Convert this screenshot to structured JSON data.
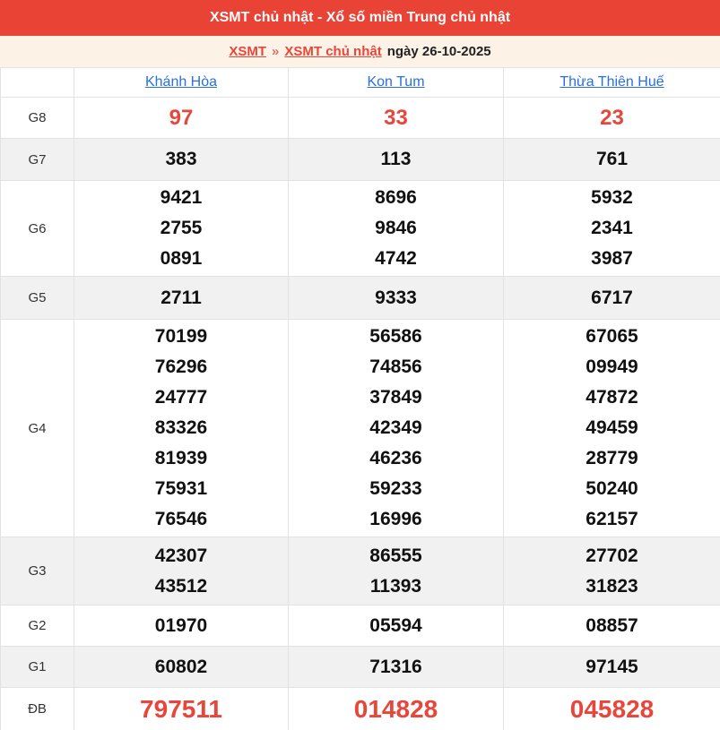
{
  "header": {
    "title": "XSMT chủ nhật - Xổ số miền Trung chủ nhật"
  },
  "breadcrumb": {
    "link1": "XSMT",
    "separator": "»",
    "link2": "XSMT chủ nhật",
    "suffix": "ngày 26-10-2025"
  },
  "table": {
    "columns": [
      "Khánh Hòa",
      "Kon Tum",
      "Thừa Thiên Huế"
    ],
    "rows": [
      {
        "key": "g8",
        "label": "G8",
        "cells": [
          [
            "97"
          ],
          [
            "33"
          ],
          [
            "23"
          ]
        ]
      },
      {
        "key": "g7",
        "label": "G7",
        "cells": [
          [
            "383"
          ],
          [
            "113"
          ],
          [
            "761"
          ]
        ]
      },
      {
        "key": "g6",
        "label": "G6",
        "cells": [
          [
            "9421",
            "2755",
            "0891"
          ],
          [
            "8696",
            "9846",
            "4742"
          ],
          [
            "5932",
            "2341",
            "3987"
          ]
        ]
      },
      {
        "key": "g5",
        "label": "G5",
        "cells": [
          [
            "2711"
          ],
          [
            "9333"
          ],
          [
            "6717"
          ]
        ]
      },
      {
        "key": "g4",
        "label": "G4",
        "cells": [
          [
            "70199",
            "76296",
            "24777",
            "83326",
            "81939",
            "75931",
            "76546"
          ],
          [
            "56586",
            "74856",
            "37849",
            "42349",
            "46236",
            "59233",
            "16996"
          ],
          [
            "67065",
            "09949",
            "47872",
            "49459",
            "28779",
            "50240",
            "62157"
          ]
        ]
      },
      {
        "key": "g3",
        "label": "G3",
        "cells": [
          [
            "42307",
            "43512"
          ],
          [
            "86555",
            "11393"
          ],
          [
            "27702",
            "31823"
          ]
        ]
      },
      {
        "key": "g2",
        "label": "G2",
        "cells": [
          [
            "01970"
          ],
          [
            "05594"
          ],
          [
            "08857"
          ]
        ]
      },
      {
        "key": "g1",
        "label": "G1",
        "cells": [
          [
            "60802"
          ],
          [
            "71316"
          ],
          [
            "97145"
          ]
        ]
      },
      {
        "key": "db",
        "label": "ĐB",
        "cells": [
          [
            "797511"
          ],
          [
            "014828"
          ],
          [
            "045828"
          ]
        ]
      }
    ]
  },
  "colors": {
    "header_bar": "#e94335",
    "accent_red": "#e8463b",
    "link_blue": "#2a6fe0",
    "breadcrumb_bg": "#fdf2e6",
    "stripe_gray": "#f1f1f1",
    "border": "#e2e2e2"
  }
}
